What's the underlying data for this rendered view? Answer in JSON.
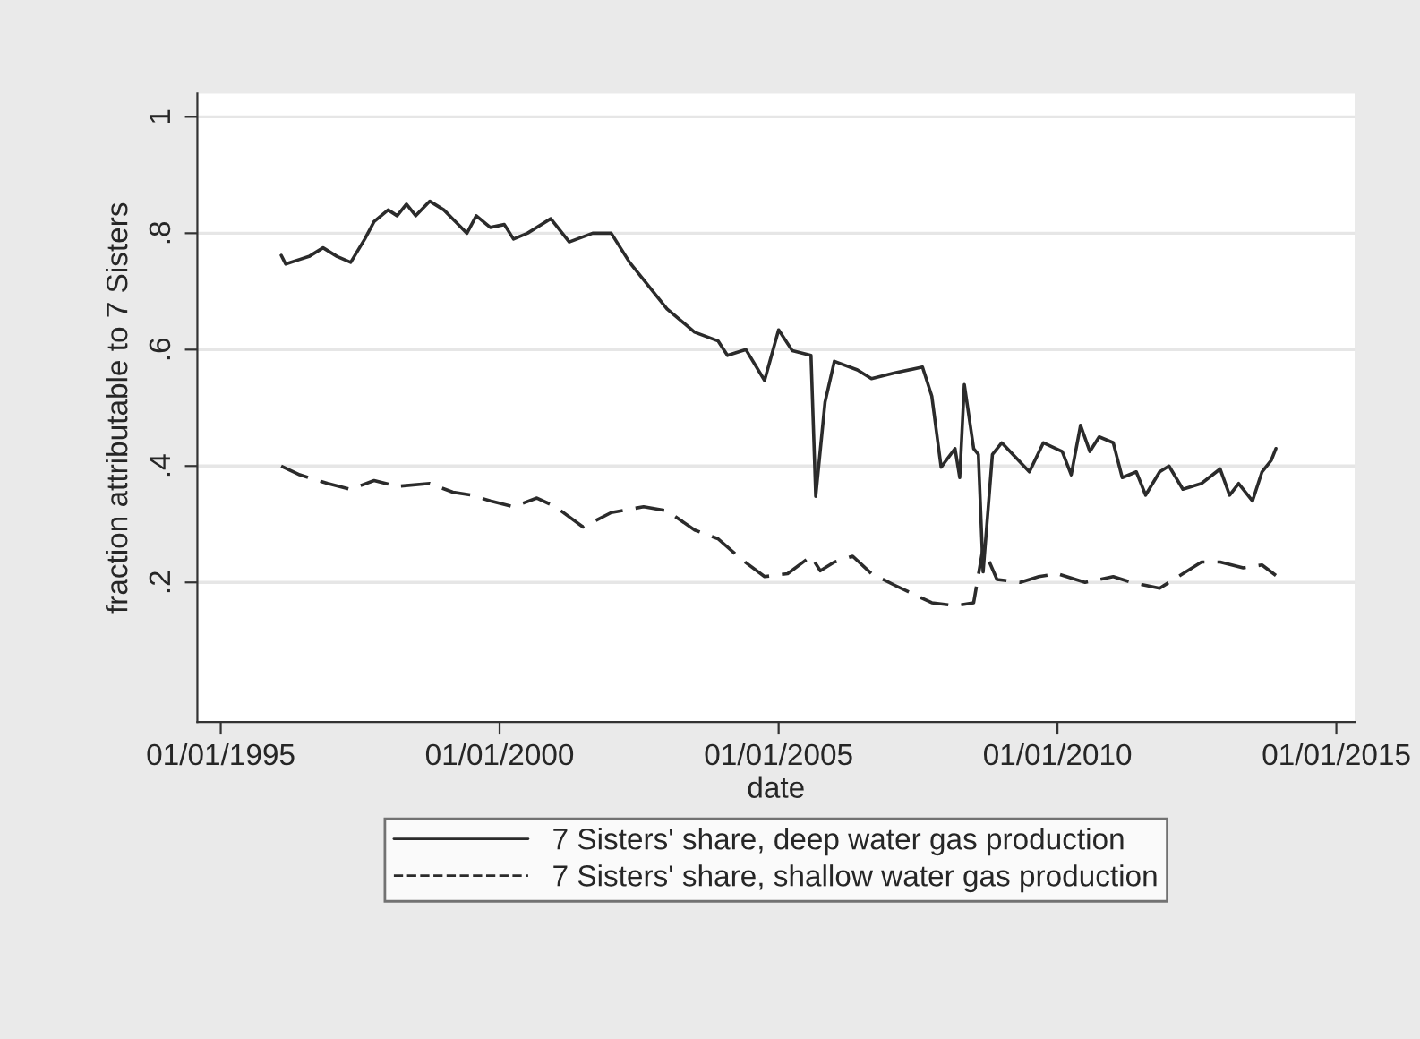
{
  "chart_data": {
    "type": "line",
    "xlabel": "date",
    "ylabel": "fraction attributable to 7 Sisters",
    "xlim": [
      "1994-08",
      "2015-05"
    ],
    "ylim": [
      -0.04,
      1.04
    ],
    "xticks": [
      {
        "value": "1995-01-01",
        "label": "01/01/1995"
      },
      {
        "value": "2000-01-01",
        "label": "01/01/2000"
      },
      {
        "value": "2005-01-01",
        "label": "01/01/2005"
      },
      {
        "value": "2010-01-01",
        "label": "01/01/2010"
      },
      {
        "value": "2015-01-01",
        "label": "01/01/2015"
      }
    ],
    "yticks": [
      {
        "value": 0.2,
        "label": ".2"
      },
      {
        "value": 0.4,
        "label": ".4"
      },
      {
        "value": 0.6,
        "label": ".6"
      },
      {
        "value": 0.8,
        "label": ".8"
      },
      1
    ],
    "grid": "y",
    "legend": "bottom",
    "series": [
      {
        "name": "7 Sisters' share, deep water gas production",
        "color": "#2b2b2b",
        "line_style": "solid",
        "x": [
          "1996-02",
          "1996-03",
          "1996-06",
          "1996-08",
          "1996-11",
          "1997-02",
          "1997-05",
          "1997-08",
          "1997-10",
          "1998-01",
          "1998-03",
          "1998-05",
          "1998-07",
          "1998-10",
          "1999-01",
          "1999-06",
          "1999-08",
          "1999-11",
          "2000-02",
          "2000-04",
          "2000-07",
          "2000-12",
          "2001-04",
          "2001-09",
          "2002-01",
          "2002-05",
          "2002-08",
          "2003-01",
          "2003-07",
          "2003-12",
          "2004-02",
          "2004-06",
          "2004-10",
          "2005-01",
          "2005-04",
          "2005-08",
          "2005-09",
          "2005-11",
          "2006-01",
          "2006-06",
          "2006-09",
          "2007-02",
          "2007-08",
          "2007-10",
          "2007-12",
          "2008-03",
          "2008-04",
          "2008-05",
          "2008-07",
          "2008-08",
          "2008-09",
          "2008-11",
          "2009-01",
          "2009-07",
          "2009-10",
          "2010-02",
          "2010-04",
          "2010-06",
          "2010-08",
          "2010-10",
          "2011-01",
          "2011-03",
          "2011-06",
          "2011-08",
          "2011-11",
          "2012-01",
          "2012-04",
          "2012-08",
          "2012-12",
          "2013-02",
          "2013-04",
          "2013-07",
          "2013-09",
          "2013-11",
          "2013-12"
        ],
        "values": [
          0.762,
          0.747,
          0.755,
          0.76,
          0.775,
          0.76,
          0.75,
          0.79,
          0.82,
          0.84,
          0.83,
          0.85,
          0.83,
          0.855,
          0.84,
          0.8,
          0.83,
          0.81,
          0.815,
          0.79,
          0.8,
          0.825,
          0.785,
          0.8,
          0.8,
          0.75,
          0.72,
          0.67,
          0.63,
          0.615,
          0.59,
          0.6,
          0.547,
          0.634,
          0.598,
          0.59,
          0.348,
          0.51,
          0.58,
          0.565,
          0.55,
          0.56,
          0.57,
          0.52,
          0.398,
          0.43,
          0.38,
          0.54,
          0.43,
          0.42,
          0.218,
          0.42,
          0.44,
          0.39,
          0.44,
          0.425,
          0.385,
          0.47,
          0.425,
          0.45,
          0.44,
          0.38,
          0.39,
          0.35,
          0.39,
          0.4,
          0.36,
          0.37,
          0.395,
          0.35,
          0.37,
          0.34,
          0.39,
          0.41,
          0.43
        ]
      },
      {
        "name": "7 Sisters' share, shallow water gas production",
        "color": "#2b2b2b",
        "line_style": "dashed",
        "x": [
          "1996-02",
          "1996-06",
          "1996-12",
          "1997-05",
          "1997-10",
          "1998-03",
          "1998-10",
          "1999-03",
          "1999-07",
          "1999-11",
          "2000-04",
          "2000-09",
          "2001-01",
          "2001-07",
          "2002-01",
          "2002-08",
          "2003-01",
          "2003-07",
          "2003-12",
          "2004-05",
          "2004-10",
          "2005-03",
          "2005-08",
          "2005-10",
          "2006-01",
          "2006-05",
          "2006-09",
          "2007-02",
          "2007-10",
          "2008-03",
          "2008-07",
          "2008-09",
          "2008-12",
          "2009-05",
          "2009-09",
          "2010-01",
          "2010-07",
          "2011-01",
          "2011-05",
          "2011-11",
          "2012-04",
          "2012-08",
          "2012-12",
          "2013-05",
          "2013-09",
          "2013-12"
        ],
        "values": [
          0.4,
          0.385,
          0.37,
          0.36,
          0.375,
          0.365,
          0.37,
          0.355,
          0.35,
          0.34,
          0.33,
          0.345,
          0.33,
          0.295,
          0.32,
          0.33,
          0.323,
          0.29,
          0.275,
          0.24,
          0.21,
          0.215,
          0.245,
          0.22,
          0.235,
          0.245,
          0.215,
          0.195,
          0.165,
          0.16,
          0.165,
          0.26,
          0.205,
          0.2,
          0.21,
          0.215,
          0.2,
          0.21,
          0.2,
          0.19,
          0.215,
          0.235,
          0.235,
          0.225,
          0.23,
          0.212
        ]
      }
    ]
  }
}
